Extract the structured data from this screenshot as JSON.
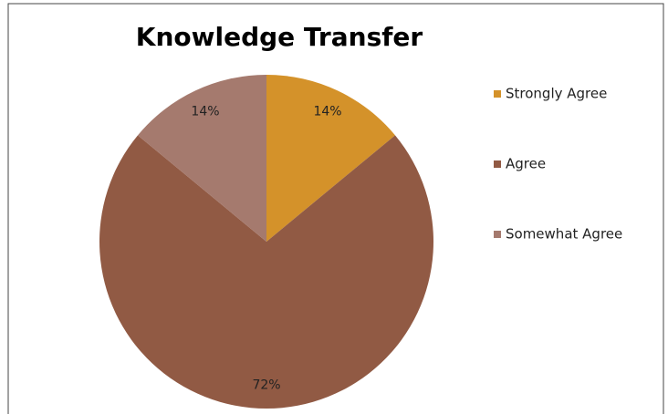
{
  "chart_data": {
    "type": "pie",
    "title": "Knowledge Transfer",
    "categories": [
      "Strongly Agree",
      "Agree",
      "Somewhat Agree"
    ],
    "values": [
      14,
      72,
      14
    ],
    "value_labels": [
      "14%",
      "72%",
      "14%"
    ],
    "colors": [
      "#d4922a",
      "#915a44",
      "#a57a6e"
    ],
    "legend": "right"
  }
}
